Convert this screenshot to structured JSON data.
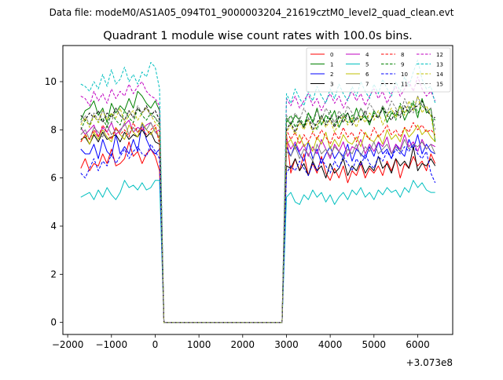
{
  "figure": {
    "suptitle": "Data file: modeM0/AS1A05_094T01_9000003204_21619cztM0_level2_quad_clean.evt"
  },
  "chart_data": {
    "type": "line",
    "title": "Quadrant 1 module wise count rates with 100.0s bins.",
    "xlabel": "",
    "ylabel": "",
    "x_offset_label": "+3.073e8",
    "xlim": [
      -2110,
      6800
    ],
    "ylim": [
      -0.5,
      11.5
    ],
    "xticks": [
      -2000,
      -1000,
      0,
      1000,
      2000,
      3000,
      4000,
      5000,
      6000
    ],
    "xtick_labels": [
      "−2000",
      "−1000",
      "0",
      "1000",
      "2000",
      "3000",
      "4000",
      "5000",
      "6000"
    ],
    "yticks": [
      0,
      2,
      4,
      6,
      8,
      10
    ],
    "ytick_labels": [
      "0",
      "2",
      "4",
      "6",
      "8",
      "10"
    ],
    "grid": false,
    "legend_position": "top-right",
    "legend_columns": 4,
    "x": [
      -1700,
      -1600,
      -1500,
      -1400,
      -1300,
      -1200,
      -1100,
      -1000,
      -900,
      -800,
      -700,
      -600,
      -500,
      -400,
      -300,
      -200,
      -100,
      0,
      100,
      200,
      300,
      400,
      500,
      600,
      700,
      800,
      900,
      1000,
      1100,
      1200,
      1300,
      1400,
      1500,
      1600,
      1700,
      1800,
      1900,
      2000,
      2100,
      2200,
      2300,
      2400,
      2500,
      2600,
      2700,
      2800,
      2900,
      3000,
      3100,
      3200,
      3300,
      3400,
      3500,
      3600,
      3700,
      3800,
      3900,
      4000,
      4100,
      4200,
      4300,
      4400,
      4500,
      4600,
      4700,
      4800,
      4900,
      5000,
      5100,
      5200,
      5300,
      5400,
      5500,
      5600,
      5700,
      5800,
      5900,
      6000,
      6100,
      6200,
      6300,
      6400
    ],
    "gap_zero_range": [
      400,
      2800
    ],
    "series": [
      {
        "name": "0",
        "color": "#ff0000",
        "dash": "solid",
        "pre": [
          6.4,
          6.8,
          6.3,
          6.6,
          6.5,
          7.0,
          6.6,
          7.2,
          6.5,
          6.6,
          6.8,
          7.5,
          6.9,
          7.1,
          6.6,
          7.0,
          7.2,
          6.9,
          6.3
        ],
        "post": [
          7.8,
          6.2,
          6.8,
          6.3,
          7.0,
          6.1,
          6.6,
          6.2,
          6.9,
          6.2,
          5.9,
          6.4,
          6.0,
          6.5,
          5.8,
          6.3,
          6.1,
          6.6,
          6.0,
          6.4,
          6.2,
          6.5,
          6.1,
          6.7,
          6.3,
          6.8,
          6.0,
          6.6,
          6.4,
          6.9,
          6.5,
          6.7,
          6.3,
          7.0,
          6.6
        ]
      },
      {
        "name": "1",
        "color": "#008000",
        "dash": "solid",
        "pre": [
          8.4,
          8.8,
          8.9,
          9.2,
          8.6,
          8.9,
          8.3,
          9.1,
          8.7,
          9.0,
          8.8,
          9.3,
          8.9,
          9.6,
          9.4,
          9.1,
          8.9,
          9.2,
          8.8
        ],
        "post": [
          8.5,
          8.2,
          8.6,
          8.4,
          8.1,
          8.7,
          8.3,
          8.9,
          8.2,
          8.6,
          8.4,
          8.8,
          8.1,
          8.5,
          8.7,
          8.3,
          8.9,
          8.4,
          8.6,
          8.2,
          8.8,
          8.5,
          8.9,
          8.3,
          8.7,
          8.6,
          9.0,
          8.4,
          8.8,
          9.1,
          8.5,
          9.3,
          8.7,
          8.9,
          7.5
        ]
      },
      {
        "name": "2",
        "color": "#0000ff",
        "dash": "solid",
        "pre": [
          7.2,
          7.0,
          7.0,
          7.4,
          6.8,
          7.6,
          7.1,
          6.9,
          7.8,
          7.0,
          7.3,
          7.0,
          7.6,
          7.1,
          8.3,
          7.6,
          7.2,
          7.0,
          7.2
        ],
        "post": [
          7.3,
          6.9,
          7.4,
          7.0,
          6.7,
          7.5,
          6.8,
          7.2,
          6.6,
          7.0,
          7.3,
          6.8,
          7.1,
          6.9,
          7.4,
          6.7,
          7.2,
          7.0,
          6.8,
          7.3,
          6.9,
          7.5,
          7.0,
          7.2,
          6.8,
          7.4,
          7.1,
          6.9,
          7.6,
          7.2,
          7.8,
          7.0,
          7.4,
          7.1,
          7.0
        ]
      },
      {
        "name": "3",
        "color": "#000000",
        "dash": "solid",
        "pre": [
          7.6,
          7.7,
          7.4,
          7.8,
          7.5,
          7.9,
          7.6,
          7.7,
          7.8,
          7.5,
          7.9,
          7.6,
          7.8,
          7.7,
          8.0,
          7.7,
          7.9,
          7.5,
          7.4
        ],
        "post": [
          6.5,
          6.4,
          6.8,
          6.3,
          6.6,
          6.1,
          6.7,
          6.3,
          6.5,
          6.0,
          6.6,
          6.2,
          6.4,
          6.8,
          6.1,
          6.5,
          6.3,
          6.7,
          6.2,
          6.5,
          6.3,
          6.9,
          6.4,
          6.6,
          6.2,
          6.8,
          6.5,
          6.7,
          6.4,
          7.3,
          6.3,
          6.6,
          6.5,
          6.8,
          6.5
        ]
      },
      {
        "name": "4",
        "color": "#c000c0",
        "dash": "solid",
        "pre": [
          8.1,
          7.8,
          8.0,
          8.2,
          7.7,
          8.1,
          7.9,
          8.3,
          7.8,
          8.0,
          8.2,
          8.4,
          7.9,
          8.1,
          8.0,
          8.2,
          8.3,
          7.9,
          8.0
        ],
        "post": [
          7.6,
          7.2,
          7.5,
          7.1,
          7.4,
          6.9,
          7.3,
          7.0,
          7.6,
          7.2,
          6.8,
          7.4,
          7.1,
          7.5,
          6.9,
          7.3,
          7.2,
          7.6,
          7.0,
          7.4,
          7.1,
          7.5,
          7.3,
          7.7,
          7.0,
          7.4,
          7.2,
          7.8,
          7.3,
          7.5,
          7.1,
          7.6,
          7.2,
          7.4,
          7.3
        ]
      },
      {
        "name": "5",
        "color": "#00bfbf",
        "dash": "solid",
        "pre": [
          5.2,
          5.3,
          5.4,
          5.1,
          5.5,
          5.2,
          5.6,
          5.3,
          5.1,
          5.4,
          5.9,
          5.6,
          5.7,
          5.5,
          5.8,
          5.5,
          5.6,
          5.9,
          5.9
        ],
        "post": [
          5.2,
          5.4,
          5.0,
          4.9,
          5.3,
          5.1,
          5.5,
          5.2,
          5.4,
          5.0,
          5.3,
          4.9,
          5.2,
          5.4,
          5.1,
          5.5,
          5.3,
          5.6,
          5.2,
          5.4,
          5.1,
          5.5,
          5.3,
          5.6,
          5.4,
          5.5,
          5.2,
          5.6,
          5.4,
          5.9,
          5.6,
          5.8,
          5.5,
          5.4,
          5.4
        ]
      },
      {
        "name": "6",
        "color": "#bfbf00",
        "dash": "solid",
        "pre": [
          7.5,
          7.8,
          7.4,
          7.9,
          7.6,
          8.0,
          7.7,
          7.5,
          8.1,
          7.8,
          7.6,
          8.2,
          7.9,
          7.7,
          8.3,
          8.0,
          7.8,
          8.1,
          7.6
        ],
        "post": [
          7.4,
          7.6,
          7.2,
          7.8,
          7.3,
          7.5,
          7.1,
          7.7,
          7.4,
          7.9,
          7.2,
          7.6,
          7.3,
          7.8,
          7.5,
          7.4,
          7.7,
          7.3,
          7.9,
          7.6,
          7.5,
          7.8,
          7.4,
          8.0,
          7.6,
          7.8,
          7.5,
          8.1,
          7.7,
          7.9,
          8.2,
          7.8,
          8.0,
          7.7,
          7.5
        ]
      },
      {
        "name": "7",
        "color": "#808080",
        "dash": "solid",
        "pre": [
          7.8,
          8.0,
          7.6,
          8.1,
          7.9,
          7.7,
          8.2,
          7.8,
          8.0,
          7.9,
          8.3,
          7.8,
          8.1,
          7.9,
          8.2,
          8.0,
          8.3,
          7.9,
          7.7
        ],
        "post": [
          7.1,
          6.9,
          7.3,
          6.8,
          7.2,
          7.0,
          6.7,
          7.4,
          7.0,
          7.2,
          6.9,
          7.3,
          7.1,
          6.8,
          7.2,
          7.0,
          7.4,
          6.9,
          7.3,
          7.1,
          7.5,
          7.0,
          7.2,
          7.4,
          7.0,
          7.3,
          7.1,
          7.6,
          7.2,
          7.4,
          7.3,
          7.5,
          7.2,
          7.4,
          7.0
        ]
      },
      {
        "name": "8",
        "color": "#ff0000",
        "dash": "dashed",
        "pre": [
          7.5,
          7.8,
          7.6,
          8.0,
          7.7,
          8.2,
          7.9,
          7.6,
          8.1,
          7.8,
          8.0,
          7.7,
          8.3,
          7.9,
          8.1,
          7.8,
          8.0,
          8.2,
          7.4
        ],
        "post": [
          8.0,
          7.6,
          7.9,
          7.4,
          7.8,
          7.5,
          7.9,
          7.6,
          8.0,
          7.7,
          7.4,
          7.9,
          7.6,
          8.1,
          7.7,
          7.9,
          7.5,
          8.0,
          7.8,
          7.6,
          8.1,
          7.7,
          7.9,
          8.2,
          7.8,
          8.0,
          7.7,
          8.1,
          7.9,
          8.3,
          8.0,
          8.2,
          7.9,
          8.0,
          7.8
        ]
      },
      {
        "name": "9",
        "color": "#008000",
        "dash": "dashed",
        "pre": [
          8.0,
          8.4,
          8.2,
          8.6,
          8.3,
          8.5,
          8.1,
          8.7,
          8.4,
          8.2,
          8.8,
          8.5,
          8.3,
          8.9,
          8.6,
          8.4,
          8.7,
          8.5,
          8.2
        ],
        "post": [
          8.3,
          8.6,
          8.1,
          8.5,
          8.2,
          8.7,
          8.4,
          8.0,
          8.6,
          8.3,
          8.8,
          8.2,
          8.5,
          8.7,
          8.3,
          8.6,
          8.4,
          8.9,
          8.5,
          8.3,
          8.7,
          8.5,
          9.0,
          8.6,
          8.8,
          8.4,
          9.1,
          8.7,
          8.9,
          9.2,
          8.7,
          9.0,
          8.8,
          8.6,
          8.4
        ]
      },
      {
        "name": "10",
        "color": "#0000ff",
        "dash": "dashed",
        "pre": [
          6.2,
          6.0,
          6.4,
          6.8,
          6.3,
          6.7,
          6.5,
          7.0,
          6.6,
          6.9,
          7.2,
          6.8,
          7.1,
          7.3,
          7.0,
          6.9,
          7.4,
          7.1,
          6.8
        ],
        "post": [
          6.2,
          6.5,
          6.3,
          6.7,
          6.4,
          6.1,
          6.6,
          6.3,
          6.8,
          6.5,
          6.2,
          6.7,
          6.4,
          6.9,
          6.6,
          6.3,
          6.8,
          6.5,
          7.0,
          6.6,
          6.4,
          6.9,
          6.7,
          7.1,
          6.8,
          7.2,
          7.0,
          7.3,
          7.1,
          7.4,
          7.0,
          6.8,
          7.1,
          6.2,
          5.8
        ]
      },
      {
        "name": "11",
        "color": "#000000",
        "dash": "dashed",
        "pre": [
          8.6,
          8.4,
          8.7,
          8.5,
          8.8,
          8.3,
          8.7,
          8.5,
          8.9,
          8.6,
          8.4,
          8.8,
          8.5,
          8.9,
          8.7,
          9.0,
          8.6,
          8.8,
          8.4
        ],
        "post": [
          8.0,
          8.3,
          7.9,
          8.4,
          8.1,
          8.5,
          8.0,
          8.3,
          8.6,
          8.2,
          8.5,
          8.1,
          8.6,
          8.3,
          8.7,
          8.2,
          8.5,
          8.4,
          8.8,
          8.3,
          8.6,
          8.5,
          8.9,
          8.6,
          8.4,
          8.8,
          8.5,
          9.0,
          8.7,
          8.9,
          9.0,
          9.2,
          8.8,
          8.6,
          8.5
        ]
      },
      {
        "name": "12",
        "color": "#c000c0",
        "dash": "dashed",
        "pre": [
          9.4,
          9.3,
          9.0,
          9.6,
          9.2,
          9.5,
          9.1,
          9.7,
          9.3,
          9.6,
          9.4,
          9.9,
          9.5,
          9.8,
          10.0,
          9.6,
          9.4,
          9.3,
          9.0
        ],
        "post": [
          9.3,
          9.0,
          9.4,
          8.9,
          9.2,
          9.5,
          9.0,
          9.3,
          8.8,
          9.2,
          9.5,
          9.1,
          9.4,
          8.9,
          9.3,
          9.6,
          9.2,
          9.5,
          9.0,
          9.4,
          9.7,
          9.3,
          9.6,
          9.1,
          9.5,
          9.8,
          9.4,
          9.7,
          10.0,
          9.6,
          10.2,
          9.7,
          9.4,
          9.6,
          9.2
        ]
      },
      {
        "name": "13",
        "color": "#00bfbf",
        "dash": "dashed",
        "pre": [
          9.9,
          9.8,
          9.6,
          10.0,
          9.7,
          10.3,
          9.8,
          10.5,
          9.9,
          10.1,
          10.6,
          10.0,
          10.3,
          9.9,
          10.4,
          10.2,
          10.8,
          10.6,
          9.7
        ],
        "post": [
          9.5,
          9.1,
          9.7,
          9.3,
          9.0,
          9.6,
          9.2,
          9.8,
          9.4,
          9.1,
          9.7,
          9.3,
          9.9,
          9.5,
          9.2,
          9.8,
          9.4,
          10.0,
          9.6,
          9.3,
          9.9,
          9.5,
          10.1,
          9.7,
          9.4,
          10.0,
          9.6,
          10.2,
          9.8,
          10.4,
          10.9,
          10.1,
          9.7,
          9.8,
          9.1
        ]
      },
      {
        "name": "14",
        "color": "#bfbf00",
        "dash": "dashed",
        "pre": [
          8.2,
          8.5,
          8.1,
          8.6,
          8.3,
          8.8,
          8.4,
          8.7,
          8.5,
          8.9,
          8.3,
          8.6,
          8.8,
          8.4,
          8.7,
          8.9,
          8.6,
          8.3,
          8.1
        ],
        "post": [
          7.9,
          8.2,
          7.8,
          8.3,
          8.0,
          8.4,
          7.9,
          8.2,
          8.5,
          8.1,
          8.4,
          7.9,
          8.3,
          8.6,
          8.2,
          8.5,
          8.1,
          8.6,
          8.3,
          8.7,
          8.4,
          8.8,
          8.2,
          8.6,
          8.9,
          8.5,
          9.0,
          8.6,
          9.2,
          8.8,
          9.4,
          8.7,
          9.0,
          8.6,
          7.6
        ]
      },
      {
        "name": "15",
        "color": "#808080",
        "dash": "dashed",
        "pre": [
          8.3,
          8.6,
          8.2,
          8.7,
          8.4,
          8.8,
          8.5,
          8.3,
          8.9,
          8.6,
          8.4,
          8.8,
          8.5,
          9.0,
          8.7,
          8.9,
          8.6,
          8.5,
          8.3
        ],
        "post": [
          8.6,
          8.3,
          8.7,
          8.4,
          8.9,
          8.5,
          8.2,
          8.8,
          8.4,
          8.9,
          8.6,
          8.3,
          8.8,
          8.5,
          9.0,
          8.7,
          8.4,
          8.9,
          8.6,
          9.1,
          8.8,
          8.5,
          9.0,
          8.7,
          9.2,
          8.9,
          8.6,
          9.3,
          8.9,
          8.7,
          9.4,
          9.0,
          8.8,
          8.9,
          8.0
        ]
      }
    ]
  }
}
